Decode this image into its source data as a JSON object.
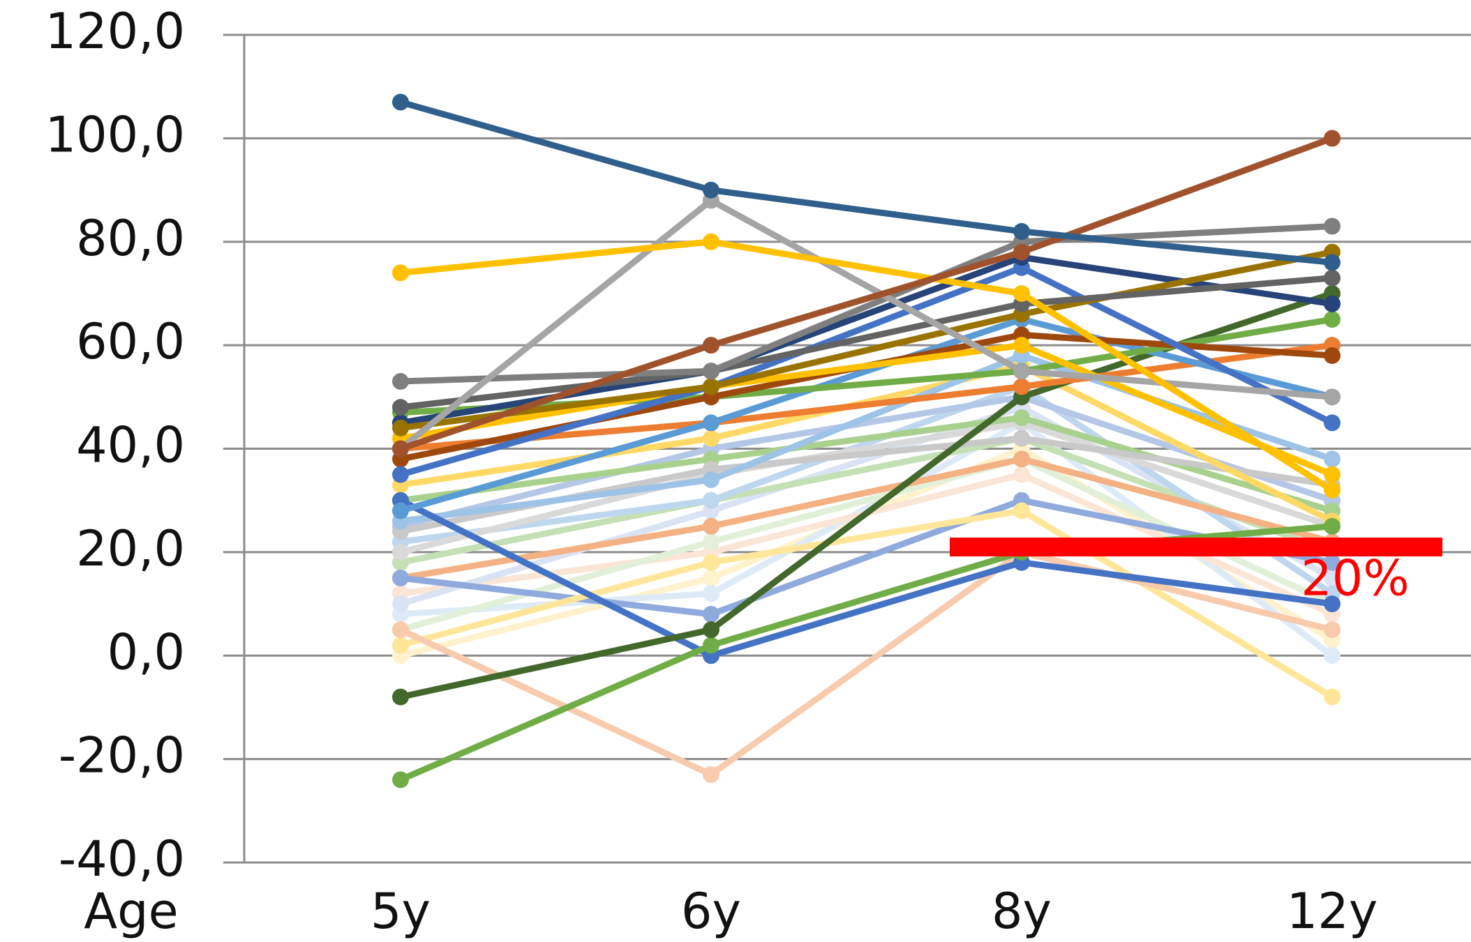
{
  "chart_data": {
    "type": "line",
    "x_label": "Age",
    "categories": [
      "5y",
      "6y",
      "8y",
      "12y"
    ],
    "ylim": [
      -40,
      120
    ],
    "yticks": [
      {
        "value": -40,
        "label": "-40,0"
      },
      {
        "value": -20,
        "label": "-20,0"
      },
      {
        "value": 0,
        "label": "0,0"
      },
      {
        "value": 20,
        "label": "20,0"
      },
      {
        "value": 40,
        "label": "40,0"
      },
      {
        "value": 60,
        "label": "60,0"
      },
      {
        "value": 80,
        "label": "80,0"
      },
      {
        "value": 100,
        "label": "100,0"
      },
      {
        "value": 120,
        "label": "120,0"
      }
    ],
    "grid": true,
    "annotation": {
      "text": "20%",
      "value": 21,
      "color": "#ff0000"
    },
    "series": [
      {
        "color": "#fff2cc",
        "values": [
          0,
          15,
          40,
          3
        ]
      },
      {
        "color": "#deebf7",
        "values": [
          8,
          12,
          45,
          0
        ]
      },
      {
        "color": "#fbe5d6",
        "values": [
          12,
          20,
          35,
          8
        ]
      },
      {
        "color": "#e2f0d9",
        "values": [
          5,
          22,
          38,
          10
        ]
      },
      {
        "color": "#dae3f3",
        "values": [
          10,
          28,
          48,
          15
        ]
      },
      {
        "color": "#c5e0b4",
        "values": [
          18,
          30,
          42,
          20
        ]
      },
      {
        "color": "#bdd7ee",
        "values": [
          22,
          30,
          52,
          12
        ]
      },
      {
        "color": "#f4b183",
        "values": [
          15,
          25,
          38,
          22
        ]
      },
      {
        "color": "#d9d9d9",
        "values": [
          20,
          35,
          45,
          25
        ]
      },
      {
        "color": "#b4c7e7",
        "values": [
          25,
          40,
          50,
          30
        ]
      },
      {
        "color": "#a9d18e",
        "values": [
          30,
          38,
          46,
          28
        ]
      },
      {
        "color": "#c9c9c9",
        "values": [
          24,
          36,
          42,
          33
        ]
      },
      {
        "color": "#ffd966",
        "values": [
          33,
          42,
          56,
          26
        ]
      },
      {
        "color": "#9dc3e6",
        "values": [
          26,
          34,
          58,
          38
        ]
      },
      {
        "color": "#8faadc",
        "values": [
          15,
          8,
          30,
          18
        ]
      },
      {
        "color": "#ffe699",
        "values": [
          2,
          18,
          28,
          -8
        ]
      },
      {
        "color": "#f8cbad",
        "values": [
          5,
          -23,
          20,
          5
        ]
      },
      {
        "color": "#4472c4",
        "values": [
          30,
          0,
          18,
          10
        ]
      },
      {
        "color": "#70ad47",
        "values": [
          -24,
          2,
          20,
          25
        ]
      },
      {
        "color": "#43682b",
        "values": [
          -8,
          5,
          50,
          70
        ]
      },
      {
        "color": "#ed7d31",
        "values": [
          40,
          45,
          52,
          60
        ]
      },
      {
        "color": "#5b9bd5",
        "values": [
          28,
          45,
          65,
          50
        ]
      },
      {
        "color": "#70ad47",
        "values": [
          47,
          50,
          55,
          65
        ]
      },
      {
        "color": "#9e480e",
        "values": [
          38,
          50,
          62,
          58
        ]
      },
      {
        "color": "#ffc000",
        "values": [
          42,
          52,
          60,
          35
        ]
      },
      {
        "color": "#4472c4",
        "values": [
          35,
          52,
          75,
          45
        ]
      },
      {
        "color": "#264478",
        "values": [
          45,
          55,
          77,
          68
        ]
      },
      {
        "color": "#997300",
        "values": [
          44,
          52,
          66,
          78
        ]
      },
      {
        "color": "#636363",
        "values": [
          48,
          55,
          68,
          73
        ]
      },
      {
        "color": "#7f7f7f",
        "values": [
          53,
          55,
          80,
          83
        ]
      },
      {
        "color": "#a5a5a5",
        "values": [
          40,
          88,
          55,
          50
        ]
      },
      {
        "color": "#ffc000",
        "values": [
          74,
          80,
          70,
          32
        ]
      },
      {
        "color": "#a0522d",
        "values": [
          40,
          60,
          78,
          100
        ]
      },
      {
        "color": "#2f5f8a",
        "values": [
          107,
          90,
          82,
          76
        ]
      }
    ]
  }
}
